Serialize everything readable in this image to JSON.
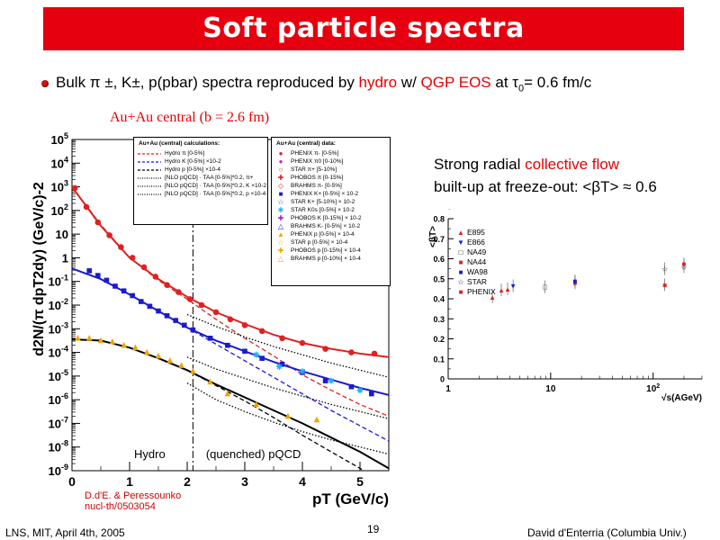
{
  "slide": {
    "title": "Soft particle spectra",
    "bullet": {
      "t1": "Bulk π ±, K±, p(pbar) spectra reproduced by ",
      "t2": "hydro",
      "t3": " w/ ",
      "t4": "QGP EOS",
      "t5": " at τ",
      "t6": "0",
      "t7": "= 0.6 fm/c"
    },
    "centrality_label": "Au+Au central (b = 2.6 fm)",
    "flow_caption": {
      "line1a": "Strong radial ",
      "line1b": "collective flow",
      "line2": "built-up at freeze-out: <βT> ≈  0.6"
    },
    "credit": {
      "line1": "D.d'E. & Peressounko",
      "line2": "nucl-th/0503054"
    },
    "footer": {
      "left": "LNS, MIT, April 4th, 2005",
      "page": "19",
      "right": "David d'Enterria (Columbia Univ.)"
    },
    "colors": {
      "title_bg": "#e6000f",
      "accent": "#e60000",
      "pion": "#e02020",
      "kaon": "#1a1ad0",
      "proton": "#f0a400"
    }
  },
  "chart_data": [
    {
      "type": "scatter",
      "xlabel": "pT (GeV/c)",
      "ylabel": "d2N/(π dpT2dy) (GeV/c)-2",
      "xlim": [
        0,
        5.5
      ],
      "ylim_log10": [
        -9,
        5
      ],
      "x_ticks": [
        "0",
        "1",
        "2",
        "3",
        "4",
        "5"
      ],
      "y_ticks": [
        "10-9",
        "10-8",
        "10-7",
        "10-6",
        "10-5",
        "10-4",
        "10-3",
        "10-2",
        "10-1",
        "1",
        "10",
        "102",
        "103",
        "104",
        "105"
      ],
      "grid": false,
      "region_labels": {
        "hydro": "Hydro",
        "pqcd": "(quenched) pQCD"
      },
      "divider_x": 2.1,
      "calc_legend": {
        "title": "Au+Au (central) calculations:",
        "entries": [
          {
            "label": "Hydro π [0-5%]",
            "color": "#e02020",
            "style": "dashed"
          },
          {
            "label": "Hydro K [0-5%] ×10-2",
            "color": "#1a1ad0",
            "style": "dashed"
          },
          {
            "label": "Hydro p [0-5%] ×10-4",
            "color": "#000000",
            "style": "dashed"
          },
          {
            "label": "[NLO pQCD] · TAA [0-5%]*0.2, π+",
            "color": "#000000",
            "style": "dotted"
          },
          {
            "label": "[NLO pQCD] · TAA [0-5%]*0.2, K ×10-2",
            "color": "#000000",
            "style": "dotted"
          },
          {
            "label": "[NLO pQCD] · TAA [0-5%]*0.2, p ×10-4",
            "color": "#000000",
            "style": "dotted"
          }
        ]
      },
      "data_legend": {
        "title": "Au+Au (central) data:",
        "entries": [
          {
            "label": "PHENIX π- [0-5%]",
            "marker": "●",
            "color": "#e02020"
          },
          {
            "label": "PHENIX π0 [0-10%]",
            "marker": "●",
            "color": "#d020d0"
          },
          {
            "label": "STAR π+ [5-10%]",
            "marker": "○",
            "color": "#e02020"
          },
          {
            "label": "PHOBOS π [0-15%]",
            "marker": "✚",
            "color": "#e02020"
          },
          {
            "label": "BRAHMS π- [0-5%]",
            "marker": "◇",
            "color": "#e02020"
          },
          {
            "label": "PHENIX K+ [0-5%] × 10-2",
            "marker": "■",
            "color": "#1a1ad0"
          },
          {
            "label": "STAR K+ [5-10%] × 10-2",
            "marker": "☆",
            "color": "#1a1ad0"
          },
          {
            "label": "STAR K0s [0-5%] × 10-2",
            "marker": "✱",
            "color": "#20b0f0"
          },
          {
            "label": "PHOBOS K [0-15%] × 10-2",
            "marker": "✚",
            "color": "#a020d0"
          },
          {
            "label": "BRAHMS K- [0-5%] × 10-2",
            "marker": "△",
            "color": "#1a1ad0"
          },
          {
            "label": "PHENIX p [0-5%] × 10-4",
            "marker": "▲",
            "color": "#f0a400"
          },
          {
            "label": "STAR p [0-5%] × 10-4",
            "marker": "☆",
            "color": "#f0a400"
          },
          {
            "label": "PHOBOS p [0-15%] × 10-4",
            "marker": "✚",
            "color": "#f0a400"
          },
          {
            "label": "BRAHMS p [0-10%] × 10-4",
            "marker": "△",
            "color": "#f0a400"
          }
        ]
      },
      "series": [
        {
          "label": "PHENIX π- [0-5%]",
          "color": "#e02020",
          "marker": "circle",
          "x": [
            0.05,
            0.25,
            0.45,
            0.65,
            0.85,
            1.05,
            1.25,
            1.45,
            1.65,
            1.85,
            2.05,
            2.25,
            2.5,
            2.75,
            3.0,
            3.3,
            3.65,
            4.0,
            4.4,
            4.85,
            5.25
          ],
          "log10y": [
            2.95,
            2.15,
            1.5,
            0.95,
            0.45,
            0.0,
            -0.4,
            -0.8,
            -1.15,
            -1.45,
            -1.75,
            -2.0,
            -2.3,
            -2.6,
            -2.85,
            -3.1,
            -3.4,
            -3.6,
            -3.85,
            -4.0,
            -4.05
          ]
        },
        {
          "label": "PHENIX K+ [0-5%] × 10-2",
          "color": "#1a1ad0",
          "marker": "square",
          "x": [
            0.3,
            0.45,
            0.6,
            0.75,
            0.9,
            1.05,
            1.2,
            1.35,
            1.5,
            1.65,
            1.8,
            1.95,
            2.1,
            2.4,
            2.7,
            3.0,
            3.3,
            3.65,
            4.0,
            4.4,
            4.85,
            5.2
          ],
          "log10y": [
            -0.55,
            -0.75,
            -0.95,
            -1.2,
            -1.4,
            -1.6,
            -1.85,
            -2.05,
            -2.25,
            -2.45,
            -2.65,
            -2.85,
            -3.05,
            -3.4,
            -3.7,
            -3.95,
            -4.25,
            -4.5,
            -4.85,
            -5.2,
            -5.45,
            -5.75
          ]
        },
        {
          "label": "STAR K0s [0-5%] × 10-2",
          "color": "#20b0f0",
          "marker": "star",
          "x": [
            3.2,
            3.6,
            4.0,
            4.5,
            5.0
          ],
          "log10y": [
            -4.1,
            -4.6,
            -4.8,
            -5.2,
            -5.6
          ]
        },
        {
          "label": "PHENIX p [0-5%] × 10-4",
          "color": "#f0a400",
          "marker": "triangle",
          "x": [
            0.1,
            0.3,
            0.5,
            0.7,
            0.9,
            1.1,
            1.3,
            1.5,
            1.7,
            1.9,
            2.1,
            2.4,
            2.7,
            3.2,
            3.75,
            4.25
          ],
          "log10y": [
            -3.4,
            -3.4,
            -3.5,
            -3.55,
            -3.7,
            -3.8,
            -4.0,
            -4.15,
            -4.35,
            -4.55,
            -4.8,
            -5.25,
            -5.75,
            -6.2,
            -6.7,
            -6.85
          ]
        }
      ],
      "curves": [
        {
          "label": "Hydro π (solid)",
          "color": "#e02020",
          "style": "solid",
          "x": [
            0,
            0.5,
            1,
            1.5,
            2,
            2.5,
            3,
            3.5,
            4,
            4.5,
            5,
            5.5
          ],
          "log10y": [
            3.0,
            1.35,
            0.0,
            -0.9,
            -1.65,
            -2.3,
            -2.8,
            -3.25,
            -3.6,
            -3.85,
            -4.05,
            -4.2
          ]
        },
        {
          "label": "Hydro π (dashed)",
          "color": "#e02020",
          "style": "dashed",
          "x": [
            0,
            0.5,
            1,
            1.5,
            2,
            2.5,
            3,
            3.5,
            4,
            4.5,
            5,
            5.5
          ],
          "log10y": [
            3.0,
            1.4,
            0.0,
            -0.95,
            -1.75,
            -2.6,
            -3.4,
            -4.15,
            -4.95,
            -5.6,
            -6.2,
            -6.7
          ]
        },
        {
          "label": "Hydro K (solid)",
          "color": "#1a1ad0",
          "style": "solid",
          "x": [
            0,
            0.5,
            1,
            1.5,
            2,
            2.5,
            3,
            3.5,
            4,
            4.5,
            5,
            5.5
          ],
          "log10y": [
            -0.45,
            -0.9,
            -1.55,
            -2.25,
            -2.95,
            -3.5,
            -3.95,
            -4.4,
            -4.8,
            -5.15,
            -5.5,
            -5.8
          ]
        },
        {
          "label": "Hydro K (dashed)",
          "color": "#1a1ad0",
          "style": "dashed",
          "x": [
            0,
            0.5,
            1,
            1.5,
            2,
            2.5,
            3,
            3.5,
            4,
            4.5,
            5,
            5.5
          ],
          "log10y": [
            -0.45,
            -0.9,
            -1.55,
            -2.25,
            -2.95,
            -3.65,
            -4.35,
            -5.05,
            -5.75,
            -6.45,
            -7.1,
            -7.75
          ]
        },
        {
          "label": "Hydro p (solid)",
          "color": "#000000",
          "style": "solid",
          "x": [
            0,
            0.5,
            1,
            1.5,
            2,
            2.5,
            3,
            3.5,
            4,
            4.5,
            5,
            5.5
          ],
          "log10y": [
            -3.45,
            -3.5,
            -3.8,
            -4.25,
            -4.75,
            -5.35,
            -5.9,
            -6.45,
            -7.0,
            -7.6,
            -8.2,
            -8.9
          ]
        },
        {
          "label": "Hydro p (dashed)",
          "color": "#000000",
          "style": "dashed",
          "x": [
            0,
            0.5,
            1,
            1.5,
            2,
            2.5,
            3,
            3.5,
            4,
            4.5,
            5,
            5.5
          ],
          "log10y": [
            -3.45,
            -3.5,
            -3.8,
            -4.25,
            -4.75,
            -5.4,
            -6.05,
            -6.75,
            -7.5,
            -8.2,
            -8.9,
            -9.6
          ]
        },
        {
          "label": "NLO pQCD π",
          "color": "#000000",
          "style": "dotted",
          "x": [
            2,
            2.5,
            3,
            3.5,
            4,
            4.5,
            5,
            5.5
          ],
          "log10y": [
            -2.4,
            -2.9,
            -3.35,
            -3.75,
            -4.1,
            -4.45,
            -4.75,
            -5.05
          ]
        },
        {
          "label": "NLO pQCD K",
          "color": "#000000",
          "style": "dotted",
          "x": [
            2,
            2.5,
            3,
            3.5,
            4,
            4.5,
            5,
            5.5
          ],
          "log10y": [
            -4.2,
            -4.7,
            -5.1,
            -5.5,
            -5.85,
            -6.2,
            -6.5,
            -6.8
          ]
        },
        {
          "label": "NLO pQCD p",
          "color": "#000000",
          "style": "dotted",
          "x": [
            2,
            2.5,
            3,
            3.5,
            4,
            4.5,
            5,
            5.5
          ],
          "log10y": [
            -5.3,
            -6.0,
            -6.5,
            -6.95,
            -7.35,
            -7.7,
            -8.0,
            -8.3
          ]
        }
      ]
    },
    {
      "type": "scatter",
      "xlabel": "√s(AGeV)",
      "ylabel": "<βT>",
      "x_scale": "log",
      "xlim": [
        1,
        300
      ],
      "ylim": [
        0,
        0.8
      ],
      "x_ticks": [
        "1",
        "10",
        "102"
      ],
      "y_ticks": [
        "0",
        "0.1",
        "0.2",
        "0.3",
        "0.4",
        "0.5",
        "0.6",
        "0.7",
        "0.8"
      ],
      "series": [
        {
          "name": "E895",
          "marker": "▲",
          "color": "#e02020",
          "x": [
            2.7,
            3.3,
            3.8
          ],
          "y": [
            0.41,
            0.445,
            0.45
          ]
        },
        {
          "name": "E866",
          "marker": "▼",
          "color": "#1a1ad0",
          "x": [
            4.3
          ],
          "y": [
            0.465
          ]
        },
        {
          "name": "NA49",
          "marker": "□",
          "color": "#000000",
          "x": [
            8.8
          ],
          "y": [
            0.46
          ]
        },
        {
          "name": "NA44",
          "marker": "■",
          "color": "#e02020",
          "x": [
            17.3
          ],
          "y": [
            0.48
          ]
        },
        {
          "name": "WA98",
          "marker": "■",
          "color": "#1a1ad0",
          "x": [
            17.3
          ],
          "y": [
            0.49
          ]
        },
        {
          "name": "STAR",
          "marker": "☆",
          "color": "#000000",
          "x": [
            130,
            200
          ],
          "y": [
            0.55,
            0.56
          ]
        },
        {
          "name": "PHENIX",
          "marker": "■",
          "color": "#e02020",
          "x": [
            130,
            200
          ],
          "y": [
            0.47,
            0.575
          ]
        }
      ]
    }
  ]
}
